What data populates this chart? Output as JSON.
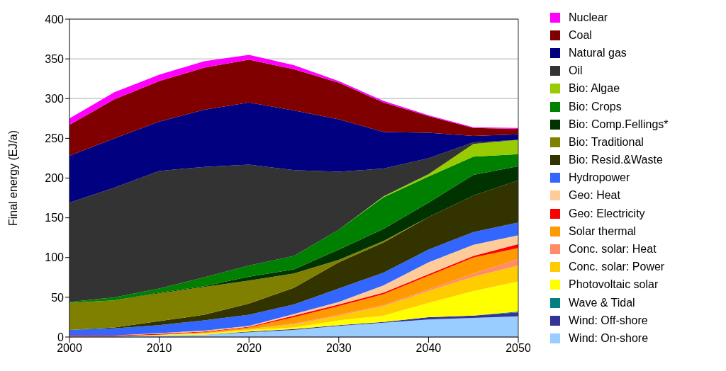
{
  "chart_data": {
    "type": "area",
    "stacked": true,
    "ylabel": "Final energy (EJ/a)",
    "x": [
      2000,
      2005,
      2010,
      2015,
      2020,
      2025,
      2030,
      2035,
      2040,
      2045,
      2050
    ],
    "xlim": [
      2000,
      2050
    ],
    "xticks": [
      2000,
      2010,
      2020,
      2030,
      2040,
      2050
    ],
    "ylim": [
      0,
      400
    ],
    "yticks": [
      0,
      50,
      100,
      150,
      200,
      250,
      300,
      350,
      400
    ],
    "grid": "y",
    "legend": "right",
    "series": [
      {
        "name": "Wind: On-shore",
        "color": "#99ccff",
        "values": [
          1,
          1,
          2,
          3,
          6,
          9,
          14,
          18,
          22,
          24,
          26
        ]
      },
      {
        "name": "Wind: Off-shore",
        "color": "#333399",
        "values": [
          null,
          null,
          null,
          0,
          1,
          1,
          1,
          1,
          3,
          3,
          5
        ]
      },
      {
        "name": "Wave & Tidal",
        "color": "#008080",
        "values": [
          null,
          null,
          null,
          null,
          null,
          null,
          null,
          null,
          0,
          0,
          1
        ]
      },
      {
        "name": "Photovoltaic solar",
        "color": "#ffff00",
        "values": [
          null,
          0,
          1,
          1,
          2,
          2,
          6,
          8,
          18,
          31,
          38
        ]
      },
      {
        "name": "Conc. solar: Power",
        "color": "#ffcc00",
        "values": [
          null,
          null,
          0,
          1,
          1,
          4,
          6,
          12,
          15,
          18,
          20
        ]
      },
      {
        "name": "Conc. solar: Heat",
        "color": "#ff8c69",
        "values": [
          null,
          null,
          null,
          null,
          0,
          1,
          1,
          1,
          2,
          4,
          8
        ]
      },
      {
        "name": "Solar thermal",
        "color": "#ff9900",
        "values": [
          null,
          null,
          0,
          1,
          2,
          8,
          11,
          14,
          17,
          20,
          14
        ]
      },
      {
        "name": "Geo: Electricity",
        "color": "#ff0000",
        "values": [
          1,
          1,
          1,
          1,
          1,
          2,
          2,
          2,
          2,
          2,
          5
        ]
      },
      {
        "name": "Geo: Heat",
        "color": "#ffcc99",
        "values": [
          null,
          0,
          1,
          1,
          1,
          2,
          3,
          9,
          15,
          14,
          11
        ]
      },
      {
        "name": "Hydropower",
        "color": "#3366ff",
        "values": [
          7,
          9,
          10,
          13,
          14,
          12,
          17,
          16,
          16,
          16,
          16
        ]
      },
      {
        "name": "Bio: Resid.&Waste",
        "color": "#333300",
        "values": [
          0,
          1,
          5,
          7,
          14,
          21,
          33,
          38,
          41,
          46,
          53
        ]
      },
      {
        "name": "Bio: Traditional",
        "color": "#808000",
        "values": [
          34,
          34,
          35,
          35,
          29,
          18,
          3,
          2,
          0,
          null,
          null
        ]
      },
      {
        "name": "Bio: Comp.Fellings*",
        "color": "#003300",
        "values": [
          null,
          0,
          1,
          1,
          5,
          5,
          13,
          15,
          18,
          26,
          18
        ]
      },
      {
        "name": "Bio: Crops",
        "color": "#008000",
        "values": [
          1,
          4,
          5,
          11,
          14,
          17,
          25,
          40,
          33,
          23,
          15
        ]
      },
      {
        "name": "Bio: Algae",
        "color": "#99cc00",
        "values": [
          null,
          null,
          null,
          null,
          null,
          null,
          0,
          1,
          3,
          16,
          18
        ]
      },
      {
        "name": "Oil",
        "color": "#333333",
        "values": [
          125,
          138,
          148,
          139,
          127,
          108,
          73,
          35,
          20,
          2,
          0
        ]
      },
      {
        "name": "Natural gas",
        "color": "#000080",
        "values": [
          59,
          62,
          62,
          72,
          78,
          75,
          66,
          46,
          32,
          8,
          7
        ]
      },
      {
        "name": "Coal",
        "color": "#800000",
        "values": [
          39,
          49,
          51,
          53,
          54,
          52,
          46,
          37,
          21,
          10,
          7
        ]
      },
      {
        "name": "Nuclear",
        "color": "#ff00ff",
        "values": [
          8,
          9,
          8,
          8,
          6,
          5,
          2,
          2,
          1,
          1,
          1
        ]
      }
    ]
  }
}
